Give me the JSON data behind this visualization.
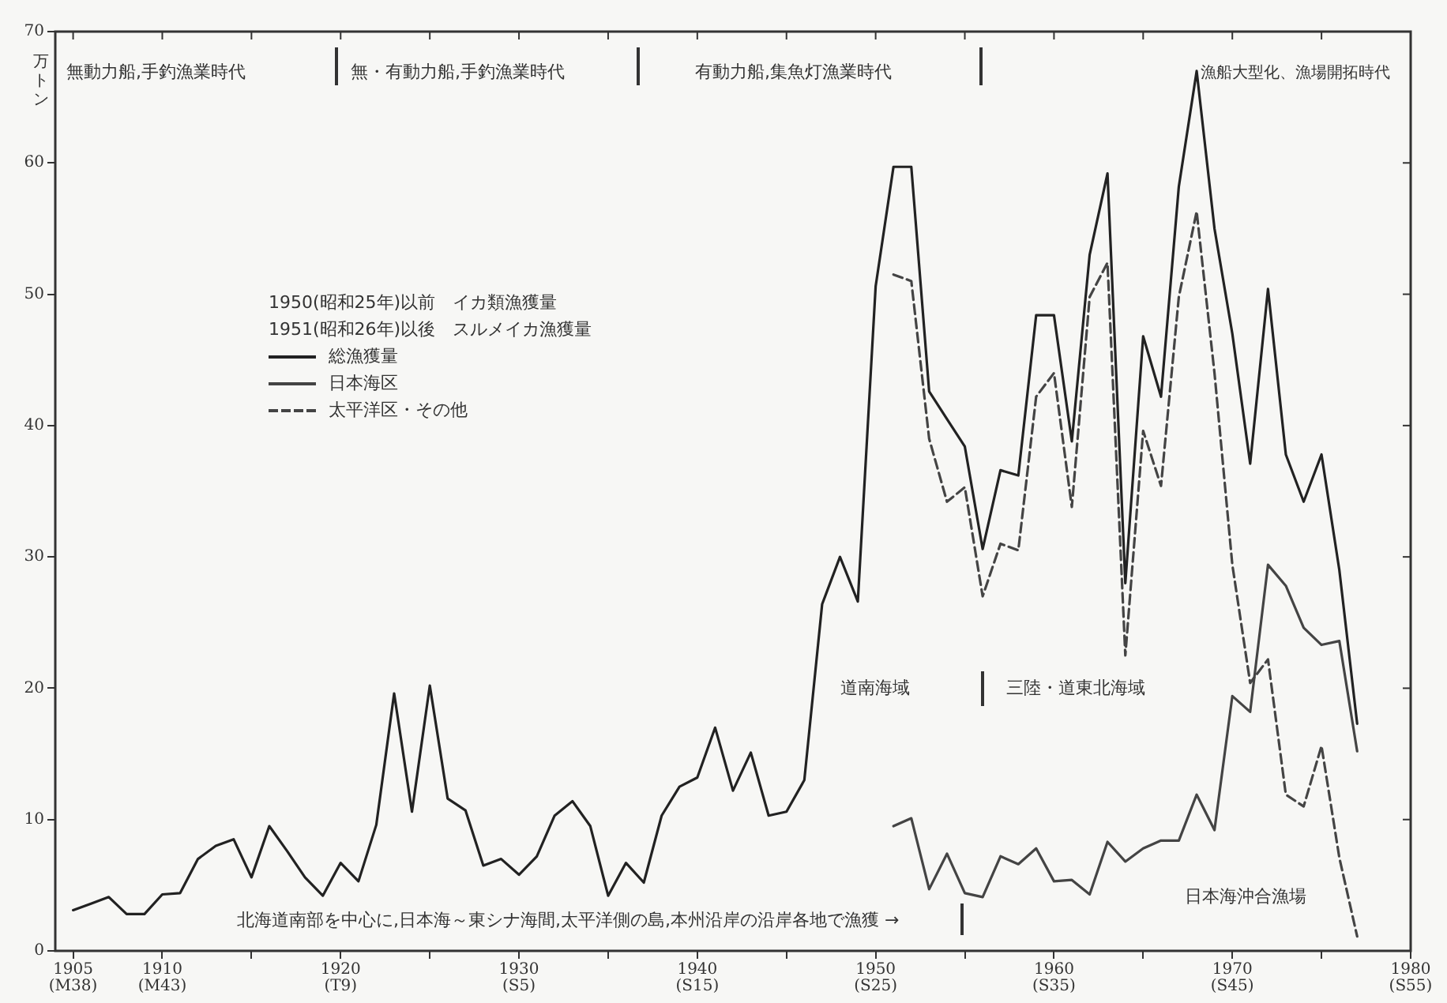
{
  "chart_data": {
    "type": "line",
    "ylabel": "万トン",
    "legend_title": "1950(昭和25年)以前　イカ類漁獲量\n1951(昭和26年)以後　スルメイカ漁獲量",
    "legend": "top left",
    "grid": false,
    "marker": "none",
    "x": [
      1905,
      1906,
      1907,
      1908,
      1909,
      1910,
      1911,
      1912,
      1913,
      1914,
      1915,
      1916,
      1917,
      1918,
      1919,
      1920,
      1921,
      1922,
      1923,
      1924,
      1925,
      1926,
      1927,
      1928,
      1929,
      1930,
      1931,
      1932,
      1933,
      1934,
      1935,
      1936,
      1937,
      1938,
      1939,
      1940,
      1941,
      1942,
      1943,
      1944,
      1945,
      1946,
      1947,
      1948,
      1949,
      1950,
      1951,
      1952,
      1953,
      1954,
      1955,
      1956,
      1957,
      1958,
      1959,
      1960,
      1961,
      1962,
      1963,
      1964,
      1965,
      1966,
      1967,
      1968,
      1969,
      1970,
      1971,
      1972,
      1973,
      1974,
      1975,
      1976,
      1977
    ],
    "xlim": [
      1904,
      1980
    ],
    "xticks": [
      1905,
      1910,
      {
        "value": 1915,
        "label": null
      },
      1920,
      {
        "value": 1925,
        "label": null
      },
      1930,
      {
        "value": 1935,
        "label": null
      },
      1940,
      {
        "value": 1945,
        "label": null
      },
      1950,
      {
        "value": 1955,
        "label": null
      },
      1960,
      {
        "value": 1965,
        "label": null
      },
      1970,
      {
        "value": 1975,
        "label": null
      },
      1980
    ],
    "ylim": [
      0,
      70
    ],
    "yticks": [
      0,
      10,
      20,
      30,
      40,
      50,
      60,
      70
    ],
    "series": [
      {
        "name": "総漁獲量",
        "color": "#222222",
        "line_style": "solid",
        "values": [
          3.1,
          3.6,
          4.1,
          2.8,
          2.8,
          4.3,
          4.4,
          7.0,
          8.0,
          8.5,
          5.6,
          9.5,
          7.6,
          5.6,
          4.2,
          6.7,
          5.3,
          9.6,
          19.6,
          10.6,
          20.2,
          11.6,
          10.7,
          6.5,
          7.0,
          5.8,
          7.2,
          10.3,
          11.4,
          9.5,
          4.2,
          6.7,
          5.2,
          10.3,
          12.5,
          13.2,
          17.0,
          12.2,
          15.1,
          10.3,
          10.6,
          13.0,
          26.4,
          30.0,
          26.6,
          50.6,
          59.7,
          59.7,
          42.6,
          40.5,
          38.4,
          30.6,
          36.6,
          36.2,
          48.4,
          48.4,
          38.8,
          53.0,
          59.2,
          28.0,
          46.8,
          42.2,
          58.2,
          67.0,
          55.0,
          47.0,
          37.1,
          50.4,
          37.8,
          34.2,
          37.8,
          29.0,
          17.3
        ]
      },
      {
        "name": "日本海区",
        "color": "#444444",
        "line_style": "solid",
        "x": [
          1951,
          1952,
          1953,
          1954,
          1955,
          1956,
          1957,
          1958,
          1959,
          1960,
          1961,
          1962,
          1963,
          1964,
          1965,
          1966,
          1967,
          1968,
          1969,
          1970,
          1971,
          1972,
          1973,
          1974,
          1975,
          1976,
          1977
        ],
        "values": [
          9.5,
          10.1,
          4.7,
          7.4,
          4.4,
          4.1,
          7.2,
          6.6,
          7.8,
          5.3,
          5.4,
          4.3,
          8.3,
          6.8,
          7.8,
          8.4,
          8.4,
          11.9,
          9.2,
          19.4,
          18.2,
          29.4,
          27.8,
          24.6,
          23.3,
          23.6,
          15.2
        ]
      },
      {
        "name": "太平洋区・その他",
        "color": "#444444",
        "line_style": "dashed",
        "x": [
          1951,
          1952,
          1953,
          1954,
          1955,
          1956,
          1957,
          1958,
          1959,
          1960,
          1961,
          1962,
          1963,
          1964,
          1965,
          1966,
          1967,
          1968,
          1969,
          1970,
          1971,
          1972,
          1973,
          1974,
          1975,
          1976,
          1977
        ],
        "values": [
          51.5,
          51.0,
          39.0,
          34.2,
          35.3,
          27.0,
          31.0,
          30.5,
          42.2,
          44.0,
          33.8,
          49.8,
          52.4,
          22.5,
          39.6,
          35.4,
          49.8,
          56.3,
          44.0,
          29.4,
          20.4,
          22.2,
          11.9,
          11.0,
          15.6,
          7.1,
          1.1
        ]
      }
    ],
    "annotations": [
      "無動力船,手釣漁業時代",
      "無・有動力船,手釣漁業時代",
      "有動力船,集魚灯漁業時代",
      "漁船大型化、漁場開拓時代",
      "道南海域",
      "三陸・道東北海域",
      "日本海沖合漁場",
      "北海道南部を中心に,日本海～東シナ海間,太平洋側の島,本州沿岸の沿岸各地で漁獲 →",
      "(M38)",
      "(M43)",
      "(T9)",
      "(S5)",
      "(S15)",
      "(S25)",
      "(S35)",
      "(S45)",
      "(S55)"
    ]
  }
}
